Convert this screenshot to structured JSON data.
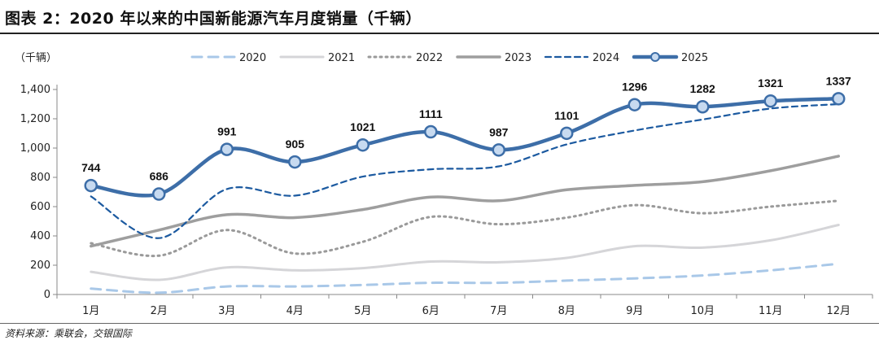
{
  "figure": {
    "title": "图表 2：2020 年以来的中国新能源汽车月度销量（千辆）",
    "source": "资料来源：乘联会，交银国际"
  },
  "chart_data": {
    "type": "line",
    "title": "图表 2：2020 年以来的中国新能源汽车月度销量（千辆）",
    "unit_label": "（千辆）",
    "ylim": [
      0,
      1400
    ],
    "yticks": [
      0,
      200,
      400,
      600,
      800,
      1000,
      1200,
      1400
    ],
    "ytick_labels": [
      "0",
      "200",
      "400",
      "600",
      "800",
      "1,000",
      "1,200",
      "1,400"
    ],
    "categories": [
      "1月",
      "2月",
      "3月",
      "4月",
      "5月",
      "6月",
      "7月",
      "8月",
      "9月",
      "10月",
      "11月",
      "12月"
    ],
    "series": [
      {
        "name": "2020",
        "values": [
          40,
          12,
          55,
          55,
          65,
          80,
          80,
          95,
          110,
          130,
          165,
          210
        ],
        "color": "#a9c8e8",
        "style": "dashed-long",
        "width": 3
      },
      {
        "name": "2021",
        "values": [
          155,
          100,
          185,
          165,
          180,
          225,
          220,
          250,
          330,
          320,
          370,
          475
        ],
        "color": "#d5d5d8",
        "style": "solid",
        "width": 3
      },
      {
        "name": "2022",
        "values": [
          350,
          265,
          440,
          280,
          360,
          530,
          480,
          525,
          610,
          555,
          600,
          640
        ],
        "color": "#9a9a9a",
        "style": "dotted",
        "width": 3
      },
      {
        "name": "2023",
        "values": [
          330,
          440,
          545,
          525,
          580,
          665,
          640,
          715,
          745,
          770,
          845,
          945
        ],
        "color": "#9e9e9e",
        "style": "solid",
        "width": 3.5
      },
      {
        "name": "2024",
        "values": [
          670,
          385,
          720,
          675,
          805,
          855,
          875,
          1025,
          1120,
          1195,
          1270,
          1300
        ],
        "color": "#1c5aa0",
        "style": "dashed",
        "width": 2.2
      },
      {
        "name": "2025",
        "values": [
          744,
          686,
          991,
          905,
          1021,
          1111,
          987,
          1101,
          1296,
          1282,
          1321,
          1337
        ],
        "color": "#3d6ea8",
        "style": "solid-marker",
        "width": 4.5
      }
    ],
    "data_labels": [
      {
        "series": "2025",
        "values": [
          "744",
          "686",
          "991",
          "905",
          "1021",
          "1111",
          "987",
          "1101",
          "1296",
          "1282",
          "1321",
          "1337"
        ]
      }
    ],
    "legend_position": "top-right",
    "grid": false
  }
}
